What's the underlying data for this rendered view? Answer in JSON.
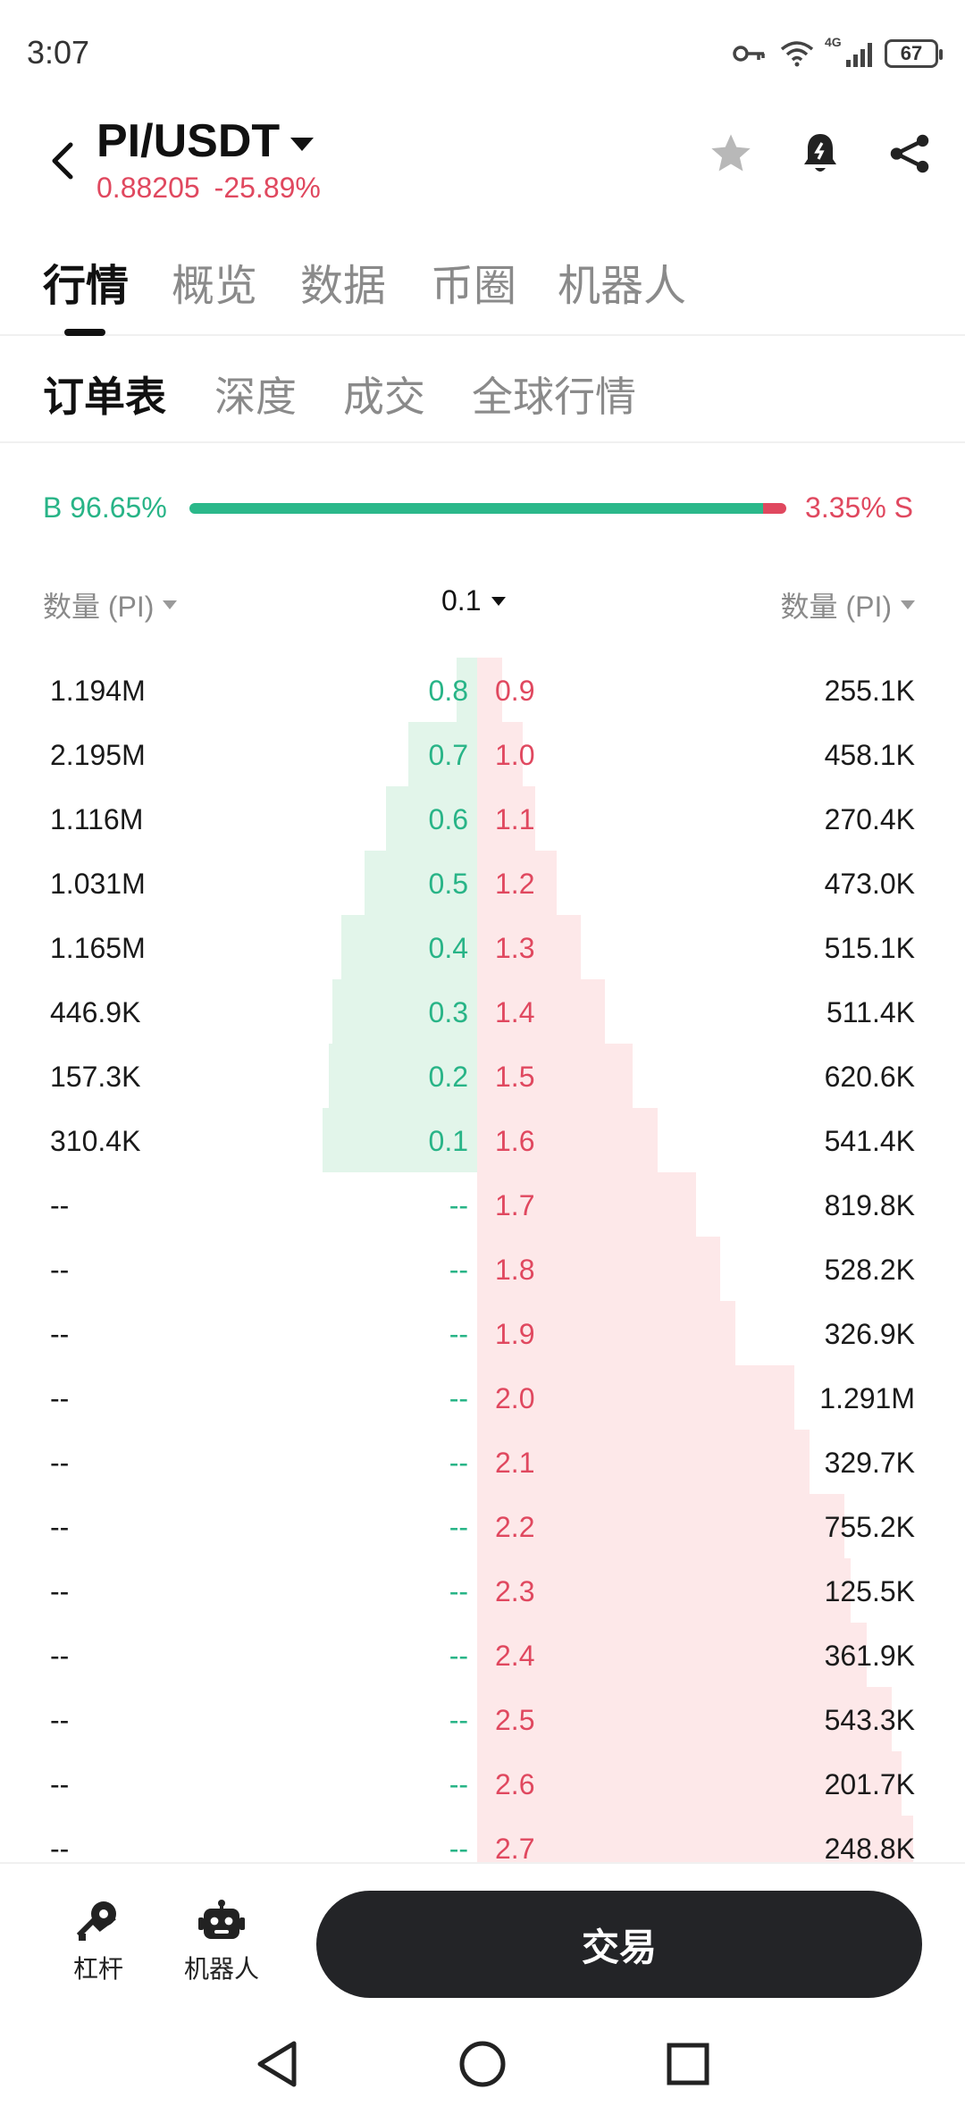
{
  "status_bar": {
    "time": "3:07",
    "battery": "67",
    "network": "4G"
  },
  "header": {
    "pair": "PI/USDT",
    "price": "0.88205",
    "change": "-25.89%"
  },
  "main_tabs": [
    "行情",
    "概览",
    "数据",
    "币圈",
    "机器人"
  ],
  "sub_tabs": [
    "订单表",
    "深度",
    "成交",
    "全球行情"
  ],
  "ratio": {
    "buy_label": "B 96.65%",
    "sell_label": "3.35% S",
    "buy_fraction": 0.9665
  },
  "order_book_header": {
    "left": "数量 (PI)",
    "precision": "0.1",
    "right": "数量 (PI)"
  },
  "order_book": [
    {
      "bid_qty": "1.194M",
      "bid_price": "0.8",
      "ask_price": "0.9",
      "ask_qty": "255.1K",
      "bid_depth": 0.108,
      "ask_depth": 0.101
    },
    {
      "bid_qty": "2.195M",
      "bid_price": "0.7",
      "ask_price": "1.0",
      "ask_qty": "458.1K",
      "bid_depth": 0.308,
      "ask_depth": 0.186
    },
    {
      "bid_qty": "1.116M",
      "bid_price": "0.6",
      "ask_price": "1.1",
      "ask_qty": "270.4K",
      "bid_depth": 0.401,
      "ask_depth": 0.237
    },
    {
      "bid_qty": "1.031M",
      "bid_price": "0.5",
      "ask_price": "1.2",
      "ask_qty": "473.0K",
      "bid_depth": 0.488,
      "ask_depth": 0.327
    },
    {
      "bid_qty": "1.165M",
      "bid_price": "0.4",
      "ask_price": "1.3",
      "ask_qty": "515.1K",
      "bid_depth": 0.585,
      "ask_depth": 0.425
    },
    {
      "bid_qty": "446.9K",
      "bid_price": "0.3",
      "ask_price": "1.4",
      "ask_qty": "511.4K",
      "bid_depth": 0.622,
      "ask_depth": 0.522
    },
    {
      "bid_qty": "157.3K",
      "bid_price": "0.2",
      "ask_price": "1.5",
      "ask_qty": "620.6K",
      "bid_depth": 0.636,
      "ask_depth": 0.639
    },
    {
      "bid_qty": "310.4K",
      "bid_price": "0.1",
      "ask_price": "1.6",
      "ask_qty": "541.4K",
      "bid_depth": 0.662,
      "ask_depth": 0.741
    },
    {
      "bid_qty": "--",
      "bid_price": "--",
      "ask_price": "1.7",
      "ask_qty": "819.8K",
      "bid_depth": 0,
      "ask_depth": 0.896
    },
    {
      "bid_qty": "--",
      "bid_price": "--",
      "ask_price": "1.8",
      "ask_qty": "528.2K",
      "bid_depth": 0,
      "ask_depth": 0.996
    },
    {
      "bid_qty": "--",
      "bid_price": "--",
      "ask_price": "1.9",
      "ask_qty": "326.9K",
      "bid_depth": 0,
      "ask_depth": 1.058
    },
    {
      "bid_qty": "--",
      "bid_price": "--",
      "ask_price": "2.0",
      "ask_qty": "1.291M",
      "bid_depth": 0,
      "ask_depth": 1.302
    },
    {
      "bid_qty": "--",
      "bid_price": "--",
      "ask_price": "2.1",
      "ask_qty": "329.7K",
      "bid_depth": 0,
      "ask_depth": 1.364
    },
    {
      "bid_qty": "--",
      "bid_price": "--",
      "ask_price": "2.2",
      "ask_qty": "755.2K",
      "bid_depth": 0,
      "ask_depth": 1.507
    },
    {
      "bid_qty": "--",
      "bid_price": "--",
      "ask_price": "2.3",
      "ask_qty": "125.5K",
      "bid_depth": 0,
      "ask_depth": 1.53
    },
    {
      "bid_qty": "--",
      "bid_price": "--",
      "ask_price": "2.4",
      "ask_qty": "361.9K",
      "bid_depth": 0,
      "ask_depth": 1.598
    },
    {
      "bid_qty": "--",
      "bid_price": "--",
      "ask_price": "2.5",
      "ask_qty": "543.3K",
      "bid_depth": 0,
      "ask_depth": 1.701
    },
    {
      "bid_qty": "--",
      "bid_price": "--",
      "ask_price": "2.6",
      "ask_qty": "201.7K",
      "bid_depth": 0,
      "ask_depth": 1.739
    },
    {
      "bid_qty": "--",
      "bid_price": "--",
      "ask_price": "2.7",
      "ask_qty": "248.8K",
      "bid_depth": 0,
      "ask_depth": 1.786
    }
  ],
  "bottom_bar": {
    "leverage_label": "杠杆",
    "robot_label": "机器人",
    "trade_label": "交易"
  },
  "icons": {
    "back": "chevron-left-icon",
    "favorite": "star-icon",
    "alert": "bell-icon",
    "share": "share-icon",
    "leverage": "leverage-icon",
    "robot": "robot-icon"
  },
  "colors": {
    "buy": "#28b487",
    "sell": "#e0485f",
    "buy_depth": "#e2f5ea",
    "sell_depth": "#fde8e9"
  }
}
